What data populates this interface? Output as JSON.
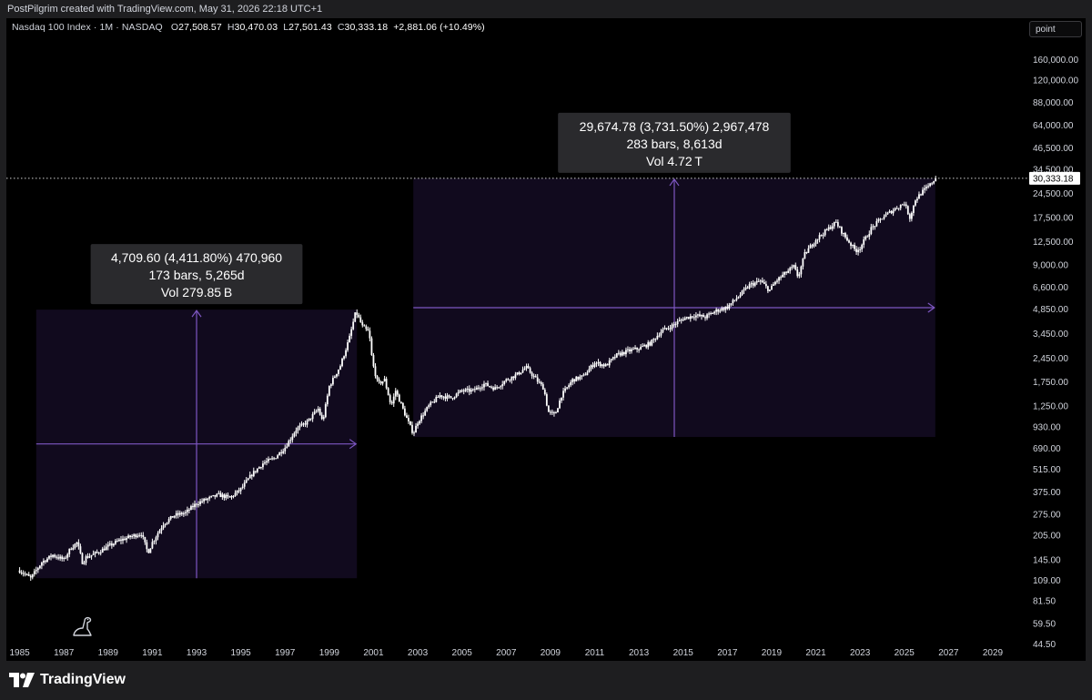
{
  "header": {
    "credit": "PostPilgrim created with TradingView.com, May 31, 2026 22:18 UTC+1"
  },
  "legend": {
    "symbol": "Nasdaq 100 Index · 1M · NASDAQ",
    "o_label": "O",
    "o_value": "27,508.57",
    "h_label": "H",
    "h_value": "30,470.03",
    "l_label": "L",
    "l_value": "27,501.43",
    "c_label": "C",
    "c_value": "30,333.18",
    "change": "+2,881.06 (+10.49%)"
  },
  "toolbar": {
    "scale_mode": "point"
  },
  "footer": {
    "brand": "TradingView"
  },
  "colors": {
    "background": "#000000",
    "candle": "#ffffff",
    "range_fill": "#110a1e",
    "range_line": "#7e57c2",
    "tooltip_bg": "#2a2a2d",
    "price_label_bg": "#ffffff"
  },
  "icons": {
    "brand": "tradingview-logo-icon",
    "dino": "dino-icon"
  },
  "chart_data": {
    "type": "candlestick",
    "title": "",
    "yscale": "log",
    "xlim": [
      1984.4,
      2030.4
    ],
    "ylim": [
      38,
      195000
    ],
    "x_ticks": [
      "1985",
      "1987",
      "1989",
      "1991",
      "1993",
      "1995",
      "1997",
      "1999",
      "2001",
      "2003",
      "2005",
      "2007",
      "2009",
      "2011",
      "2013",
      "2015",
      "2017",
      "2019",
      "2021",
      "2023",
      "2025",
      "2027",
      "2029"
    ],
    "y_ticks": [
      "160,000.00",
      "120,000.00",
      "88,000.00",
      "64,000.00",
      "46,500.00",
      "34,500.00",
      "24,500.00",
      "17,500.00",
      "12,500.00",
      "9,000.00",
      "6,600.00",
      "4,850.00",
      "3,450.00",
      "2,450.00",
      "1,750.00",
      "1,250.00",
      "930.00",
      "690.00",
      "515.00",
      "375.00",
      "275.00",
      "205.00",
      "145.00",
      "109.00",
      "81.50",
      "59.50",
      "44.50"
    ],
    "last_price": "30,333.18",
    "last_price_value": 30333.18,
    "series": [
      {
        "points": [
          [
            1985.0,
            125
          ],
          [
            1985.5,
            112
          ],
          [
            1986.0,
            140
          ],
          [
            1986.5,
            155
          ],
          [
            1987.0,
            145
          ],
          [
            1987.3,
            170
          ],
          [
            1987.6,
            185
          ],
          [
            1987.85,
            138
          ],
          [
            1988.0,
            150
          ],
          [
            1988.5,
            160
          ],
          [
            1989.0,
            175
          ],
          [
            1989.5,
            190
          ],
          [
            1990.0,
            200
          ],
          [
            1990.5,
            210
          ],
          [
            1990.8,
            160
          ],
          [
            1991.0,
            185
          ],
          [
            1991.5,
            240
          ],
          [
            1992.0,
            270
          ],
          [
            1992.5,
            280
          ],
          [
            1993.0,
            320
          ],
          [
            1993.5,
            340
          ],
          [
            1994.0,
            360
          ],
          [
            1994.5,
            345
          ],
          [
            1995.0,
            390
          ],
          [
            1995.5,
            480
          ],
          [
            1996.0,
            560
          ],
          [
            1996.5,
            600
          ],
          [
            1997.0,
            700
          ],
          [
            1997.5,
            900
          ],
          [
            1998.0,
            1000
          ],
          [
            1998.5,
            1200
          ],
          [
            1998.7,
            1000
          ],
          [
            1999.0,
            1650
          ],
          [
            1999.5,
            2200
          ],
          [
            1999.9,
            3200
          ],
          [
            2000.2,
            4700
          ],
          [
            2000.5,
            3800
          ],
          [
            2000.8,
            3500
          ],
          [
            2000.95,
            2300
          ],
          [
            2001.2,
            1700
          ],
          [
            2001.5,
            1800
          ],
          [
            2001.8,
            1250
          ],
          [
            2002.0,
            1550
          ],
          [
            2002.5,
            1050
          ],
          [
            2002.8,
            850
          ],
          [
            2003.0,
            1000
          ],
          [
            2003.5,
            1250
          ],
          [
            2004.0,
            1450
          ],
          [
            2004.5,
            1400
          ],
          [
            2005.0,
            1550
          ],
          [
            2005.5,
            1550
          ],
          [
            2006.0,
            1700
          ],
          [
            2006.5,
            1600
          ],
          [
            2007.0,
            1800
          ],
          [
            2007.5,
            1950
          ],
          [
            2007.9,
            2150
          ],
          [
            2008.3,
            1850
          ],
          [
            2008.7,
            1600
          ],
          [
            2008.9,
            1150
          ],
          [
            2009.2,
            1100
          ],
          [
            2009.5,
            1450
          ],
          [
            2010.0,
            1800
          ],
          [
            2010.5,
            1900
          ],
          [
            2011.0,
            2300
          ],
          [
            2011.5,
            2200
          ],
          [
            2012.0,
            2550
          ],
          [
            2012.5,
            2700
          ],
          [
            2013.0,
            2800
          ],
          [
            2013.5,
            3000
          ],
          [
            2014.0,
            3550
          ],
          [
            2014.5,
            3850
          ],
          [
            2015.0,
            4250
          ],
          [
            2015.5,
            4450
          ],
          [
            2016.0,
            4350
          ],
          [
            2016.5,
            4750
          ],
          [
            2017.0,
            5000
          ],
          [
            2017.5,
            5800
          ],
          [
            2018.0,
            6800
          ],
          [
            2018.5,
            7200
          ],
          [
            2018.9,
            6300
          ],
          [
            2019.2,
            7200
          ],
          [
            2019.5,
            7800
          ],
          [
            2020.0,
            8800
          ],
          [
            2020.2,
            7600
          ],
          [
            2020.5,
            10500
          ],
          [
            2021.0,
            12900
          ],
          [
            2021.5,
            14700
          ],
          [
            2021.9,
            16400
          ],
          [
            2022.3,
            13500
          ],
          [
            2022.8,
            11000
          ],
          [
            2023.0,
            11500
          ],
          [
            2023.5,
            15000
          ],
          [
            2024.0,
            17500
          ],
          [
            2024.5,
            19500
          ],
          [
            2025.0,
            21500
          ],
          [
            2025.25,
            17500
          ],
          [
            2025.5,
            22500
          ],
          [
            2025.8,
            25000
          ],
          [
            2026.15,
            27508
          ],
          [
            2026.4,
            30333
          ]
        ]
      }
    ],
    "annotations": [
      {
        "type": "date_price_range",
        "x0": 1985.75,
        "x1": 2000.25,
        "y0": 112,
        "y1": 4822,
        "line1": "4,709.60 (4,411.80%) 470,960",
        "line2": "173 bars, 5,265d",
        "line3": "Vol 279.85 B"
      },
      {
        "type": "date_price_range",
        "x0": 2002.8,
        "x1": 2026.4,
        "y0": 810,
        "y1": 30333,
        "line1": "29,674.78 (3,731.50%) 2,967,478",
        "line2": "283 bars, 8,613d",
        "line3": "Vol 4.72 T"
      }
    ]
  }
}
